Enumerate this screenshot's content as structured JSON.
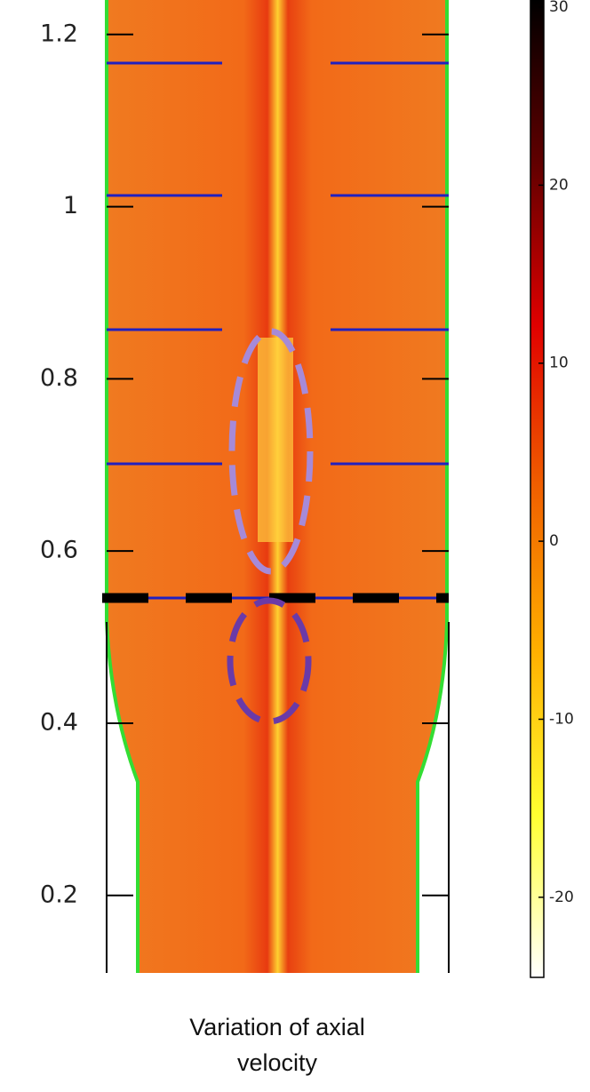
{
  "chart_data": {
    "type": "heatmap",
    "ylim": [
      0.11,
      1.24
    ],
    "yticks": [
      0.2,
      0.4,
      0.6,
      0.8,
      1,
      1.2
    ],
    "clim": [
      -24.5,
      30.4
    ],
    "cticks": [
      -20,
      -10,
      0,
      10,
      20,
      30
    ],
    "colormap": [
      "#ffffff",
      "#ffff30",
      "#ffb000",
      "#f06000",
      "#e00000",
      "#600000",
      "#000000"
    ],
    "caption": "Variation of axial velocity"
  }
}
